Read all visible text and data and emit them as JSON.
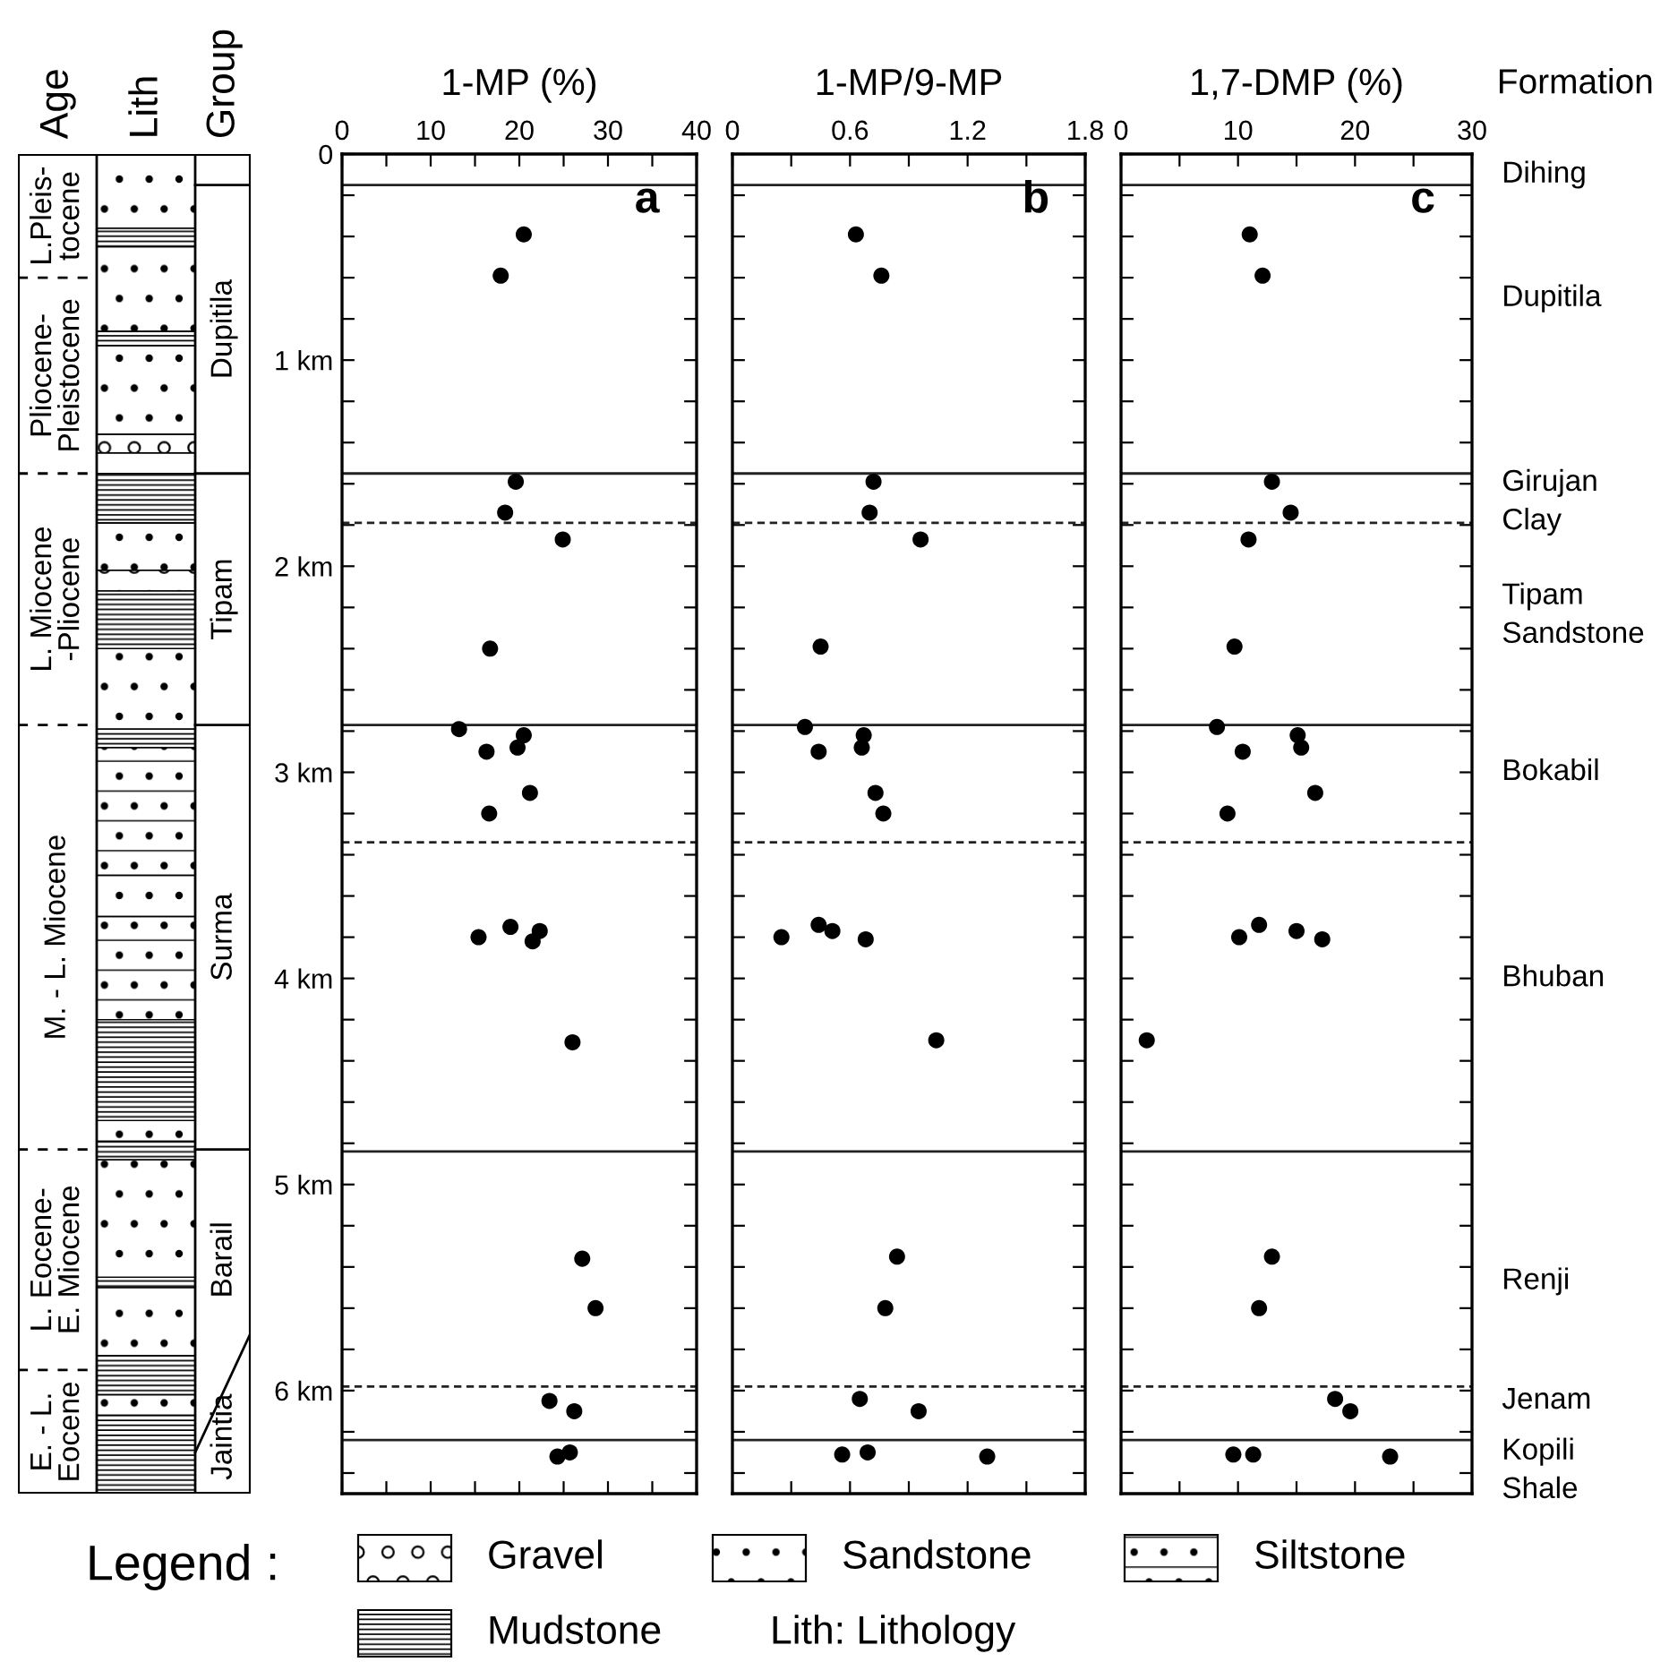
{
  "chart_data": [
    {
      "type": "scatter",
      "xlabel": "1-MP (%)",
      "color": "#000000",
      "marker": "circle",
      "x": [
        20.5,
        17.9,
        19.6,
        18.4,
        24.9,
        16.7,
        13.2,
        20.5,
        19.8,
        16.3,
        21.2,
        16.6,
        15.4,
        19.0,
        22.3,
        21.5,
        26.0,
        27.1,
        28.6,
        23.4,
        26.2,
        24.3,
        25.0,
        25.7
      ],
      "values": [
        0.39,
        0.59,
        1.59,
        1.74,
        1.87,
        2.4,
        2.79,
        2.82,
        2.88,
        2.9,
        3.1,
        3.2,
        3.8,
        3.75,
        3.77,
        3.82,
        4.31,
        5.36,
        5.6,
        6.05,
        6.1,
        6.32,
        null,
        6.3
      ],
      "xlim": [
        0,
        40
      ],
      "xticks": [
        0,
        {
          "value": 5,
          "label": null
        },
        10,
        {
          "value": 15,
          "label": null
        },
        20,
        {
          "value": 25,
          "label": null
        },
        30,
        {
          "value": 35,
          "label": null
        },
        40
      ],
      "ylim": [
        6.5,
        0
      ],
      "yticks": [
        0,
        {
          "value": 0.2,
          "label": null
        },
        {
          "value": 0.4,
          "label": null
        },
        {
          "value": 0.6,
          "label": null
        },
        {
          "value": 0.8,
          "label": null
        },
        {
          "value": 1,
          "label": "1 km"
        },
        {
          "value": 1.2,
          "label": null
        },
        {
          "value": 1.4,
          "label": null
        },
        {
          "value": 1.6,
          "label": null
        },
        {
          "value": 1.8,
          "label": null
        },
        {
          "value": 2,
          "label": "2 km"
        },
        {
          "value": 2.2,
          "label": null
        },
        {
          "value": 2.4,
          "label": null
        },
        {
          "value": 2.6,
          "label": null
        },
        {
          "value": 2.8,
          "label": null
        },
        {
          "value": 3,
          "label": "3 km"
        },
        {
          "value": 3.2,
          "label": null
        },
        {
          "value": 3.4,
          "label": null
        },
        {
          "value": 3.6,
          "label": null
        },
        {
          "value": 3.8,
          "label": null
        },
        {
          "value": 4,
          "label": "4 km"
        },
        {
          "value": 4.2,
          "label": null
        },
        {
          "value": 4.4,
          "label": null
        },
        {
          "value": 4.6,
          "label": null
        },
        {
          "value": 4.8,
          "label": null
        },
        {
          "value": 5,
          "label": "5 km"
        },
        {
          "value": 5.2,
          "label": null
        },
        {
          "value": 5.4,
          "label": null
        },
        {
          "value": 5.6,
          "label": null
        },
        {
          "value": 5.8,
          "label": null
        },
        {
          "value": 6,
          "label": "6 km"
        },
        {
          "value": 6.2,
          "label": null
        },
        {
          "value": 6.4,
          "label": null
        }
      ],
      "ref_lines": [
        {
          "axis": "y",
          "value": 0.15,
          "line_style": "solid"
        },
        {
          "axis": "y",
          "value": 1.55,
          "line_style": "solid"
        },
        {
          "axis": "y",
          "value": 1.79,
          "line_style": "dashed"
        },
        {
          "axis": "y",
          "value": 2.77,
          "line_style": "solid"
        },
        {
          "axis": "y",
          "value": 3.34,
          "line_style": "dashed"
        },
        {
          "axis": "y",
          "value": 4.84,
          "line_style": "solid"
        },
        {
          "axis": "y",
          "value": 5.98,
          "line_style": "dashed"
        },
        {
          "axis": "y",
          "value": 6.24,
          "line_style": "solid"
        }
      ],
      "annotations": [
        "a"
      ]
    },
    {
      "type": "scatter",
      "xlabel": "1-MP/9-MP",
      "color": "#000000",
      "marker": "circle",
      "tick_labels": "x",
      "x": [
        0.63,
        0.76,
        0.72,
        0.7,
        0.96,
        0.45,
        0.37,
        0.67,
        0.66,
        0.44,
        0.73,
        0.77,
        0.25,
        0.44,
        0.51,
        0.68,
        1.04,
        0.84,
        0.78,
        0.65,
        0.95,
        0.56,
        0.69,
        1.3
      ],
      "values": [
        0.39,
        0.59,
        1.59,
        1.74,
        1.87,
        2.39,
        2.78,
        2.82,
        2.88,
        2.9,
        3.1,
        3.2,
        3.8,
        3.74,
        3.77,
        3.81,
        4.3,
        5.35,
        5.6,
        6.04,
        6.1,
        6.31,
        6.3,
        6.32
      ],
      "xlim": [
        0,
        1.8
      ],
      "xticks": [
        0,
        {
          "value": 0.3,
          "label": null
        },
        0.6,
        {
          "value": 0.9,
          "label": null
        },
        1.2,
        {
          "value": 1.5,
          "label": null
        },
        1.8
      ],
      "ylim": [
        6.5,
        0
      ],
      "yticks": [
        {
          "value": 0,
          "label": null
        },
        {
          "value": 0.2,
          "label": null
        },
        {
          "value": 0.4,
          "label": null
        },
        {
          "value": 0.6,
          "label": null
        },
        {
          "value": 0.8,
          "label": null
        },
        {
          "value": 1,
          "label": null
        },
        {
          "value": 1.2,
          "label": null
        },
        {
          "value": 1.4,
          "label": null
        },
        {
          "value": 1.6,
          "label": null
        },
        {
          "value": 1.8,
          "label": null
        },
        {
          "value": 2,
          "label": null
        },
        {
          "value": 2.2,
          "label": null
        },
        {
          "value": 2.4,
          "label": null
        },
        {
          "value": 2.6,
          "label": null
        },
        {
          "value": 2.8,
          "label": null
        },
        {
          "value": 3,
          "label": null
        },
        {
          "value": 3.2,
          "label": null
        },
        {
          "value": 3.4,
          "label": null
        },
        {
          "value": 3.6,
          "label": null
        },
        {
          "value": 3.8,
          "label": null
        },
        {
          "value": 4,
          "label": null
        },
        {
          "value": 4.2,
          "label": null
        },
        {
          "value": 4.4,
          "label": null
        },
        {
          "value": 4.6,
          "label": null
        },
        {
          "value": 4.8,
          "label": null
        },
        {
          "value": 5,
          "label": null
        },
        {
          "value": 5.2,
          "label": null
        },
        {
          "value": 5.4,
          "label": null
        },
        {
          "value": 5.6,
          "label": null
        },
        {
          "value": 5.8,
          "label": null
        },
        {
          "value": 6,
          "label": null
        },
        {
          "value": 6.2,
          "label": null
        },
        {
          "value": 6.4,
          "label": null
        }
      ],
      "ref_lines": [
        {
          "axis": "y",
          "value": 0.15,
          "line_style": "solid"
        },
        {
          "axis": "y",
          "value": 1.55,
          "line_style": "solid"
        },
        {
          "axis": "y",
          "value": 1.79,
          "line_style": "dashed"
        },
        {
          "axis": "y",
          "value": 2.77,
          "line_style": "solid"
        },
        {
          "axis": "y",
          "value": 3.34,
          "line_style": "dashed"
        },
        {
          "axis": "y",
          "value": 4.84,
          "line_style": "solid"
        },
        {
          "axis": "y",
          "value": 5.98,
          "line_style": "dashed"
        },
        {
          "axis": "y",
          "value": 6.24,
          "line_style": "solid"
        }
      ],
      "annotations": [
        "b"
      ]
    },
    {
      "type": "scatter",
      "xlabel": "1,7-DMP (%)",
      "color": "#000000",
      "marker": "circle",
      "tick_labels": "x",
      "x": [
        11.0,
        12.1,
        12.9,
        14.5,
        10.9,
        9.7,
        8.2,
        15.1,
        15.4,
        10.4,
        16.6,
        9.1,
        10.1,
        11.8,
        15.0,
        17.2,
        2.2,
        12.9,
        11.8,
        18.3,
        19.6,
        9.6,
        11.3,
        23.0
      ],
      "values": [
        0.39,
        0.59,
        1.59,
        1.74,
        1.87,
        2.39,
        2.78,
        2.82,
        2.88,
        2.9,
        3.1,
        3.2,
        3.8,
        3.74,
        3.77,
        3.81,
        4.3,
        5.35,
        5.6,
        6.04,
        6.1,
        6.31,
        6.31,
        6.32
      ],
      "xlim": [
        0,
        30
      ],
      "xticks": [
        0,
        {
          "value": 5,
          "label": null
        },
        10,
        {
          "value": 15,
          "label": null
        },
        20,
        {
          "value": 25,
          "label": null
        },
        30
      ],
      "ylim": [
        6.5,
        0
      ],
      "yticks": [
        {
          "value": 0,
          "label": null
        },
        {
          "value": 0.2,
          "label": null
        },
        {
          "value": 0.4,
          "label": null
        },
        {
          "value": 0.6,
          "label": null
        },
        {
          "value": 0.8,
          "label": null
        },
        {
          "value": 1,
          "label": null
        },
        {
          "value": 1.2,
          "label": null
        },
        {
          "value": 1.4,
          "label": null
        },
        {
          "value": 1.6,
          "label": null
        },
        {
          "value": 1.8,
          "label": null
        },
        {
          "value": 2,
          "label": null
        },
        {
          "value": 2.2,
          "label": null
        },
        {
          "value": 2.4,
          "label": null
        },
        {
          "value": 2.6,
          "label": null
        },
        {
          "value": 2.8,
          "label": null
        },
        {
          "value": 3,
          "label": null
        },
        {
          "value": 3.2,
          "label": null
        },
        {
          "value": 3.4,
          "label": null
        },
        {
          "value": 3.6,
          "label": null
        },
        {
          "value": 3.8,
          "label": null
        },
        {
          "value": 4,
          "label": null
        },
        {
          "value": 4.2,
          "label": null
        },
        {
          "value": 4.4,
          "label": null
        },
        {
          "value": 4.6,
          "label": null
        },
        {
          "value": 4.8,
          "label": null
        },
        {
          "value": 5,
          "label": null
        },
        {
          "value": 5.2,
          "label": null
        },
        {
          "value": 5.4,
          "label": null
        },
        {
          "value": 5.6,
          "label": null
        },
        {
          "value": 5.8,
          "label": null
        },
        {
          "value": 6,
          "label": null
        },
        {
          "value": 6.2,
          "label": null
        },
        {
          "value": 6.4,
          "label": null
        }
      ],
      "ref_lines": [
        {
          "axis": "y",
          "value": 0.15,
          "line_style": "solid"
        },
        {
          "axis": "y",
          "value": 1.55,
          "line_style": "solid"
        },
        {
          "axis": "y",
          "value": 1.79,
          "line_style": "dashed"
        },
        {
          "axis": "y",
          "value": 2.77,
          "line_style": "solid"
        },
        {
          "axis": "y",
          "value": 3.34,
          "line_style": "dashed"
        },
        {
          "axis": "y",
          "value": 4.84,
          "line_style": "solid"
        },
        {
          "axis": "y",
          "value": 5.98,
          "line_style": "dashed"
        },
        {
          "axis": "y",
          "value": 6.24,
          "line_style": "solid"
        }
      ],
      "annotations": [
        "c",
        "Formation",
        "Dihing",
        "Dupitila",
        "Girujan\nClay",
        "Tipam\nSandstone",
        "Bokabil",
        "Bhuban",
        "Renji",
        "Jenam",
        "Kopili\nShale"
      ]
    },
    {
      "type": "other",
      "annotations": [
        "Age",
        "Lith",
        "Group",
        "L.Pleis-\ntocene",
        "Pliocene-\nPleistocene",
        "L. Miocene\n-Pliocene",
        "M. - L. Miocene",
        "L. Eocene-\nE. Miocene",
        "E. - L.\nEocene",
        "Dupitila",
        "Tipam",
        "Surma",
        "Barail",
        "Jaintia",
        "Legend :",
        "Gravel",
        "Sandstone",
        "Siltstone",
        "Mudstone",
        "Lith: Lithology"
      ]
    }
  ]
}
